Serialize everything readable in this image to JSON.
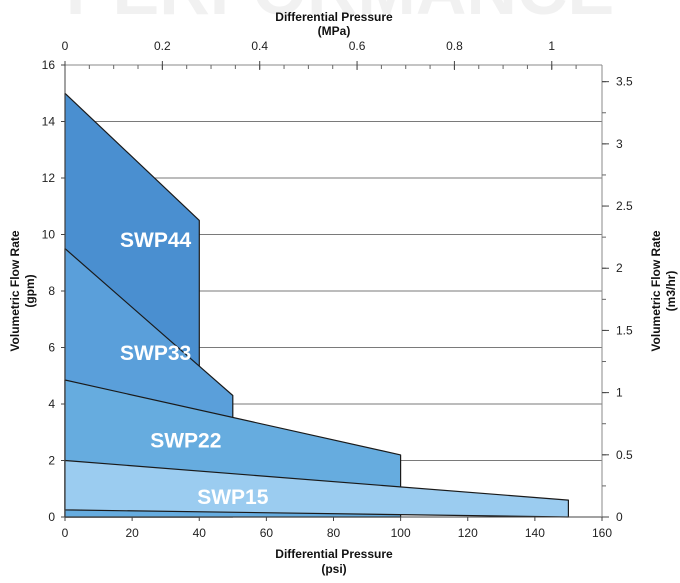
{
  "watermark": "PERFORMANCE",
  "chart_data": {
    "type": "area",
    "title": "",
    "x_axis": {
      "label_line1": "Differential Pressure",
      "label_line2": "(psi)",
      "range": [
        0,
        160
      ],
      "ticks": [
        "0",
        "20",
        "40",
        "60",
        "80",
        "100",
        "120",
        "140",
        "160"
      ]
    },
    "x2_axis": {
      "label_line1": "Differential Pressure",
      "label_line2": "(MPa)",
      "range": [
        0,
        1.1032
      ],
      "ticks": [
        "0",
        "0.2",
        "0.4",
        "0.6",
        "0.8",
        "1"
      ]
    },
    "y_axis": {
      "label_line1": "Volumetric Flow Rate",
      "label_line2": "(gpm)",
      "range": [
        0,
        16
      ],
      "ticks": [
        "0",
        "2",
        "4",
        "6",
        "8",
        "10",
        "12",
        "14",
        "16"
      ]
    },
    "y2_axis": {
      "label_line1": "Volumetric Flow Rate",
      "label_line2": "(m3/hr)",
      "range": [
        0,
        3.634
      ],
      "ticks": [
        "0",
        "0.5",
        "1",
        "1.5",
        "2",
        "2.5",
        "3",
        "3.5"
      ]
    },
    "grid": "horizontal",
    "series": [
      {
        "name": "SWP44",
        "color": "#4a8fd0",
        "points": [
          [
            0,
            0
          ],
          [
            0,
            15
          ],
          [
            40,
            10.5
          ],
          [
            40,
            0
          ]
        ]
      },
      {
        "name": "SWP33",
        "color": "#5a9fda",
        "points": [
          [
            0,
            0
          ],
          [
            0,
            9.5
          ],
          [
            50,
            4.3
          ],
          [
            50,
            0
          ]
        ]
      },
      {
        "name": "SWP22",
        "color": "#66acdf",
        "points": [
          [
            0,
            0
          ],
          [
            0,
            4.85
          ],
          [
            100,
            2.2
          ],
          [
            100,
            0
          ]
        ]
      },
      {
        "name": "SWP15",
        "color": "#9bccf0",
        "points": [
          [
            0,
            0.25
          ],
          [
            0,
            2
          ],
          [
            150,
            0.6
          ],
          [
            150,
            0
          ],
          [
            0,
            0.25
          ]
        ]
      }
    ],
    "labels": [
      {
        "text": "SWP44",
        "x": 27,
        "y": 9.8
      },
      {
        "text": "SWP33",
        "x": 27,
        "y": 5.8
      },
      {
        "text": "SWP22",
        "x": 36,
        "y": 2.7
      },
      {
        "text": "SWP15",
        "x": 50,
        "y": 0.7
      }
    ]
  }
}
